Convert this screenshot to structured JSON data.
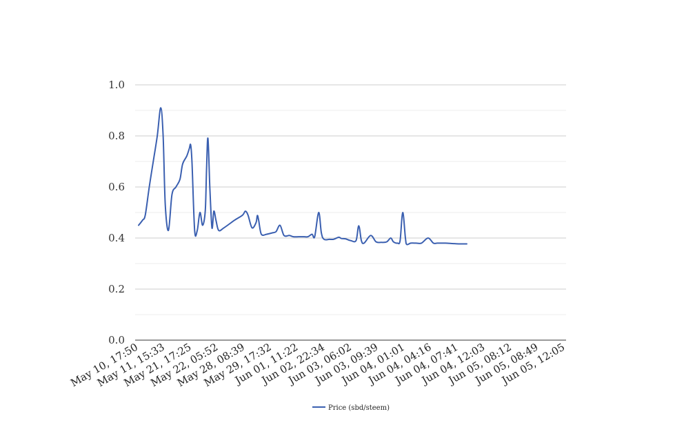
{
  "chart_data": {
    "type": "line",
    "title": "",
    "xlabel": "",
    "ylabel": "",
    "ylim": [
      0,
      1.0
    ],
    "yticks": [
      "0.0",
      "0.2",
      "0.4",
      "0.6",
      "0.8",
      "1.0"
    ],
    "grid": true,
    "legend_position": "bottom",
    "categories": [
      "May 10, 17:50",
      "May 11, 15:33",
      "May 21, 17:25",
      "May 22, 05:52",
      "May 28, 08:39",
      "May 29, 17:32",
      "Jun 01, 11:22",
      "Jun 02, 22:34",
      "Jun 03, 06:02",
      "Jun 03, 09:39",
      "Jun 04, 01:01",
      "Jun 04, 04:16",
      "Jun 04, 07:41",
      "Jun 04, 12:03",
      "Jun 05, 08:12",
      "Jun 05, 08:49",
      "Jun 05, 12:05"
    ],
    "series": [
      {
        "name": "Price (sbd/steem)",
        "color": "#3a5fb0",
        "points": [
          [
            0.0,
            0.45
          ],
          [
            0.15,
            0.47
          ],
          [
            0.25,
            0.49
          ],
          [
            0.4,
            0.6
          ],
          [
            0.55,
            0.7
          ],
          [
            0.7,
            0.8
          ],
          [
            0.83,
            0.91
          ],
          [
            0.92,
            0.8
          ],
          [
            1.0,
            0.53
          ],
          [
            1.12,
            0.43
          ],
          [
            1.25,
            0.57
          ],
          [
            1.4,
            0.6
          ],
          [
            1.55,
            0.63
          ],
          [
            1.65,
            0.69
          ],
          [
            1.8,
            0.72
          ],
          [
            1.9,
            0.75
          ],
          [
            1.95,
            0.765
          ],
          [
            2.0,
            0.7
          ],
          [
            2.1,
            0.43
          ],
          [
            2.2,
            0.43
          ],
          [
            2.3,
            0.5
          ],
          [
            2.4,
            0.45
          ],
          [
            2.5,
            0.51
          ],
          [
            2.55,
            0.68
          ],
          [
            2.6,
            0.79
          ],
          [
            2.67,
            0.6
          ],
          [
            2.75,
            0.44
          ],
          [
            2.82,
            0.505
          ],
          [
            2.9,
            0.47
          ],
          [
            3.0,
            0.43
          ],
          [
            3.2,
            0.44
          ],
          [
            3.6,
            0.47
          ],
          [
            3.9,
            0.49
          ],
          [
            4.0,
            0.505
          ],
          [
            4.1,
            0.49
          ],
          [
            4.25,
            0.44
          ],
          [
            4.4,
            0.46
          ],
          [
            4.45,
            0.488
          ],
          [
            4.5,
            0.47
          ],
          [
            4.6,
            0.415
          ],
          [
            4.8,
            0.415
          ],
          [
            5.0,
            0.42
          ],
          [
            5.15,
            0.425
          ],
          [
            5.3,
            0.45
          ],
          [
            5.45,
            0.41
          ],
          [
            5.65,
            0.41
          ],
          [
            5.8,
            0.405
          ],
          [
            6.0,
            0.405
          ],
          [
            6.2,
            0.405
          ],
          [
            6.35,
            0.405
          ],
          [
            6.5,
            0.415
          ],
          [
            6.6,
            0.405
          ],
          [
            6.75,
            0.5
          ],
          [
            6.85,
            0.42
          ],
          [
            6.95,
            0.395
          ],
          [
            7.15,
            0.395
          ],
          [
            7.3,
            0.395
          ],
          [
            7.5,
            0.403
          ],
          [
            7.6,
            0.398
          ],
          [
            7.75,
            0.397
          ],
          [
            7.95,
            0.39
          ],
          [
            8.15,
            0.39
          ],
          [
            8.25,
            0.448
          ],
          [
            8.35,
            0.39
          ],
          [
            8.45,
            0.38
          ],
          [
            8.7,
            0.41
          ],
          [
            8.9,
            0.385
          ],
          [
            9.1,
            0.383
          ],
          [
            9.3,
            0.385
          ],
          [
            9.45,
            0.4
          ],
          [
            9.55,
            0.385
          ],
          [
            9.7,
            0.38
          ],
          [
            9.8,
            0.39
          ],
          [
            9.9,
            0.5
          ],
          [
            10.0,
            0.4
          ],
          [
            10.05,
            0.375
          ],
          [
            10.2,
            0.38
          ],
          [
            10.4,
            0.38
          ],
          [
            10.6,
            0.38
          ],
          [
            10.85,
            0.4
          ],
          [
            11.05,
            0.38
          ],
          [
            11.2,
            0.38
          ],
          [
            11.5,
            0.38
          ],
          [
            11.8,
            0.378
          ],
          [
            12.0,
            0.377
          ],
          [
            12.3,
            0.377
          ]
        ]
      }
    ]
  }
}
